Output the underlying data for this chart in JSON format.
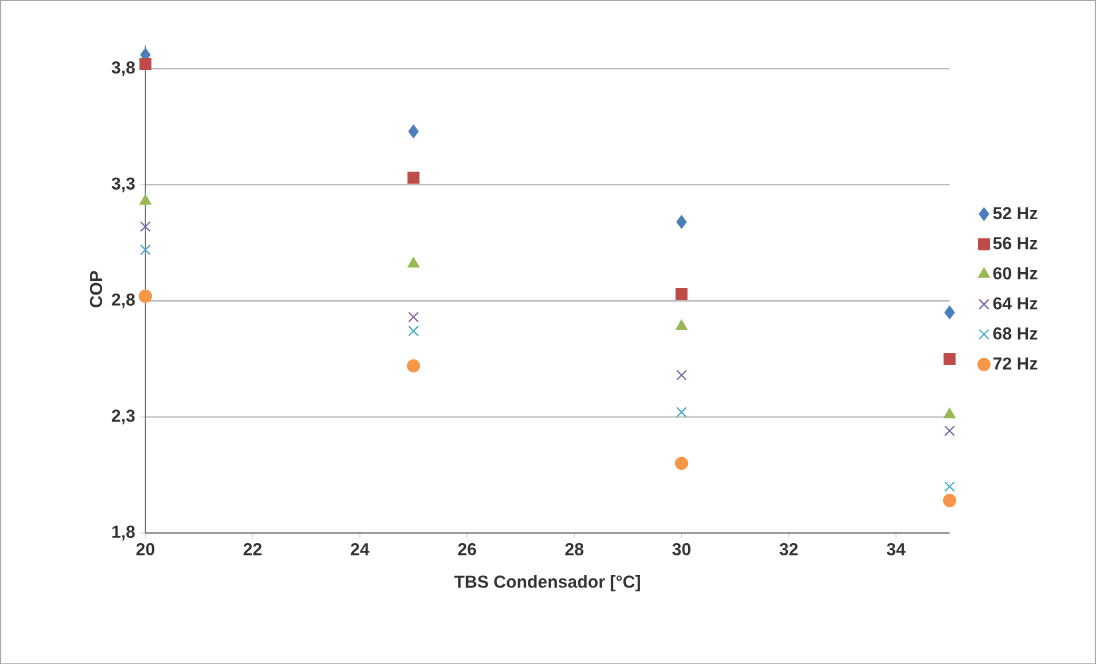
{
  "chart_data": {
    "type": "scatter",
    "xlabel": "TBS Condensador [°C]",
    "ylabel": "COP",
    "x": [
      20,
      25,
      30,
      35
    ],
    "xlim": [
      20,
      35
    ],
    "xticks": [
      20,
      22,
      24,
      26,
      28,
      30,
      32,
      34
    ],
    "ylim": [
      1.8,
      3.9
    ],
    "yticks": [
      {
        "value": 1.8,
        "label": "1,8"
      },
      {
        "value": 2.3,
        "label": "2,3"
      },
      {
        "value": 2.8,
        "label": "2,8"
      },
      {
        "value": 3.3,
        "label": "3,3"
      },
      {
        "value": 3.8,
        "label": "3,8"
      }
    ],
    "grid": "y",
    "legend": "right",
    "series": [
      {
        "name": "52 Hz",
        "color": "#4a7ebb",
        "marker": "diamond",
        "values": [
          3.86,
          3.53,
          3.14,
          2.75
        ]
      },
      {
        "name": "56 Hz",
        "color": "#be4b48",
        "marker": "square",
        "values": [
          3.82,
          3.33,
          2.83,
          2.55
        ]
      },
      {
        "name": "60 Hz",
        "color": "#98b954",
        "marker": "triangle",
        "values": [
          3.23,
          2.96,
          2.69,
          2.31
        ]
      },
      {
        "name": "64 Hz",
        "color": "#7d60a0",
        "marker": "cross",
        "values": [
          3.12,
          2.73,
          2.48,
          2.24
        ]
      },
      {
        "name": "68 Hz",
        "color": "#46aac5",
        "marker": "cross",
        "values": [
          3.02,
          2.67,
          2.32,
          2.0
        ]
      },
      {
        "name": "72 Hz",
        "color": "#f79646",
        "marker": "circle",
        "values": [
          2.82,
          2.52,
          2.1,
          1.94
        ]
      }
    ]
  }
}
